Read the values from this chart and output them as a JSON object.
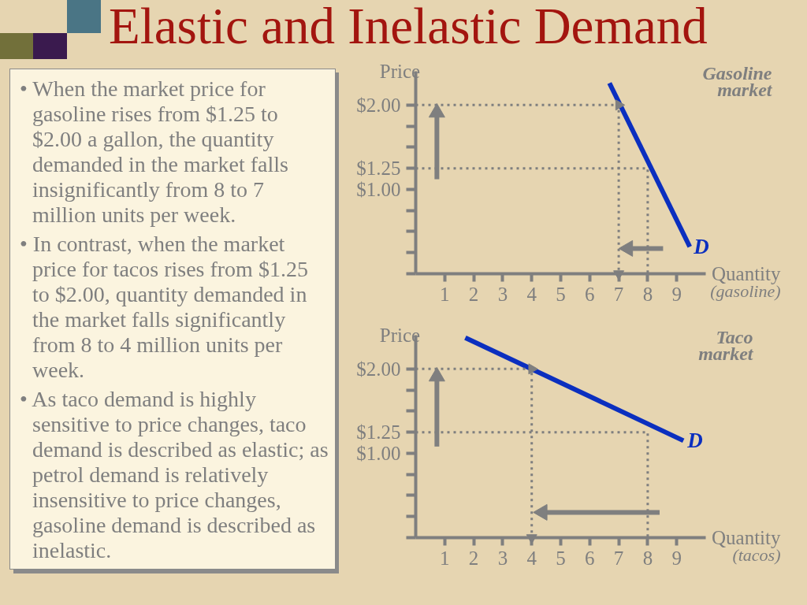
{
  "chart_data": [
    {
      "type": "other",
      "title": "Elastic and Inelastic Demand",
      "annotations": [
        "• When the market price for gasoline rises from $1.25 to $2.00 a gallon, the quantity demanded in the market falls insignificantly from 8 to 7 million units per week.",
        "• In contrast, when the market price for tacos rises from $1.25 to $2.00, quantity demanded in the market falls significantly from 8 to 4 million units per week.",
        "• As taco demand is highly sensitive to price changes, taco demand is described as elastic; as petrol demand is relatively insensitive to price changes, gasoline demand is described as inelastic."
      ]
    },
    {
      "type": "line",
      "title": "Gasoline market",
      "xlabel": "Quantity (gasoline)",
      "ylabel": "Price",
      "xlim": [
        0,
        10
      ],
      "ylim": [
        0,
        2.4
      ],
      "xticks": [
        1,
        2,
        3,
        4,
        5,
        6,
        7,
        8,
        9
      ],
      "yticks": [
        {
          "value": 0,
          "label": null
        },
        {
          "value": 0.25,
          "label": null
        },
        {
          "value": 0.5,
          "label": null
        },
        {
          "value": 0.75,
          "label": null
        },
        {
          "value": 1,
          "label": "$1.00"
        },
        {
          "value": 1.25,
          "label": "$1.25"
        },
        {
          "value": 1.5,
          "label": null
        },
        {
          "value": 1.75,
          "label": null
        },
        {
          "value": 2,
          "label": "$2.00"
        }
      ],
      "series": [
        {
          "name": "D",
          "color": "#0b2fbf",
          "x": [
            6.68,
            9.45
          ],
          "values": [
            2.26,
            0.32
          ]
        },
        {
          "color": "#7f7f7f",
          "line_style": "dotted",
          "x": [
            0,
            8,
            8
          ],
          "values": [
            1.25,
            1.25,
            0
          ]
        },
        {
          "color": "#7f7f7f",
          "line_style": "dotted",
          "marker": "triangle",
          "x": [
            0,
            7,
            7
          ],
          "values": [
            2,
            2,
            0
          ]
        },
        {
          "color": "#7f7f7f",
          "marker": "triangle",
          "x": [
            0.73,
            0.73
          ],
          "values": [
            1.12,
            1.91
          ]
        },
        {
          "color": "#7f7f7f",
          "marker": "triangle",
          "x": [
            8.53,
            7.32
          ],
          "values": [
            0.3,
            0.3
          ]
        }
      ]
    },
    {
      "type": "line",
      "title": "Taco market",
      "xlabel": "Quantity (tacos)",
      "ylabel": "Price",
      "xlim": [
        0,
        10
      ],
      "ylim": [
        0,
        2.4
      ],
      "xticks": [
        1,
        2,
        3,
        4,
        5,
        6,
        7,
        8,
        9
      ],
      "yticks": [
        {
          "value": 0,
          "label": null
        },
        {
          "value": 0.25,
          "label": null
        },
        {
          "value": 0.5,
          "label": null
        },
        {
          "value": 0.75,
          "label": null
        },
        {
          "value": 1,
          "label": "$1.00"
        },
        {
          "value": 1.25,
          "label": "$1.25"
        },
        {
          "value": 1.5,
          "label": null
        },
        {
          "value": 1.75,
          "label": null
        },
        {
          "value": 2,
          "label": "$2.00"
        }
      ],
      "series": [
        {
          "name": "D",
          "color": "#0b2fbf",
          "x": [
            1.71,
            9.23
          ],
          "values": [
            2.37,
            1.15
          ]
        },
        {
          "color": "#7f7f7f",
          "line_style": "dotted",
          "x": [
            0,
            8,
            8
          ],
          "values": [
            1.25,
            1.25,
            0
          ]
        },
        {
          "color": "#7f7f7f",
          "line_style": "dotted",
          "marker": "triangle",
          "x": [
            0,
            4,
            4
          ],
          "values": [
            2,
            2,
            0
          ]
        },
        {
          "color": "#7f7f7f",
          "marker": "triangle",
          "x": [
            0.73,
            0.73
          ],
          "values": [
            1.08,
            1.91
          ]
        },
        {
          "color": "#7f7f7f",
          "marker": "triangle",
          "x": [
            8.41,
            4.37
          ],
          "values": [
            0.3,
            0.3
          ]
        }
      ]
    }
  ]
}
